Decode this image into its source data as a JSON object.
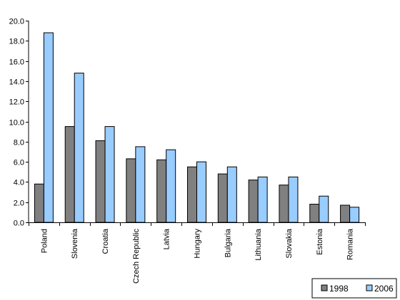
{
  "chart_data": {
    "type": "bar",
    "categories": [
      "Poland",
      "Slovenia",
      "Croatia",
      "Czech Republic",
      "Latvia",
      "Hungary",
      "Bulgaria",
      "Lithuania",
      "Slovakia",
      "Estonia",
      "Romania"
    ],
    "series": [
      {
        "name": "1998",
        "values": [
          3.8,
          9.5,
          8.1,
          6.3,
          6.2,
          5.5,
          4.8,
          4.2,
          3.7,
          1.8,
          1.7
        ],
        "color": "#808080"
      },
      {
        "name": "2006",
        "values": [
          18.8,
          14.8,
          9.5,
          7.5,
          7.2,
          6.0,
          5.5,
          4.5,
          4.5,
          2.6,
          1.5
        ],
        "color": "#99ccff"
      }
    ],
    "y_ticks": [
      "0.0",
      "2.0",
      "4.0",
      "6.0",
      "8.0",
      "10.0",
      "12.0",
      "14.0",
      "16.0",
      "18.0",
      "20.0"
    ],
    "ylim": [
      0,
      20
    ],
    "title": "",
    "xlabel": "",
    "ylabel": "",
    "grid": false,
    "legend_position": "bottom-right"
  }
}
